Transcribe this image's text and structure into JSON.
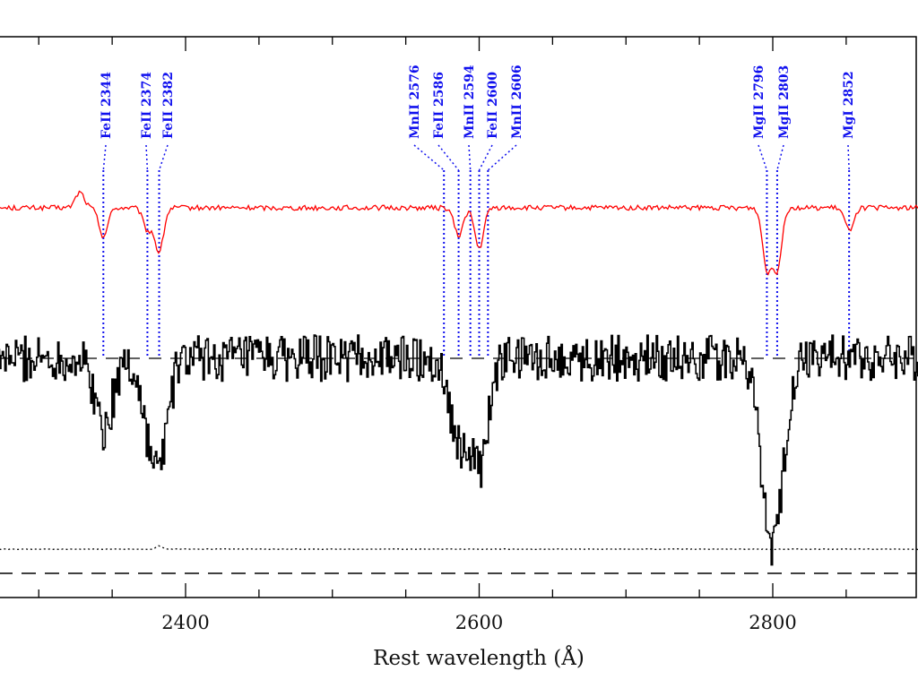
{
  "chart_data": {
    "type": "line",
    "title": "",
    "xlabel": "Rest wavelength (Å)",
    "ylabel": "",
    "xlim": [
      2240,
      2900
    ],
    "x_ticks": [
      {
        "value": 2400,
        "label": "2400"
      },
      {
        "value": 2600,
        "label": "2600"
      },
      {
        "value": 2800,
        "label": "2800"
      }
    ],
    "minor_tick_step": 50,
    "grid": false,
    "legend": "none",
    "line_markers": [
      {
        "label": "FeII 2344",
        "wavelength": 2344,
        "color": "#1010ee"
      },
      {
        "label": "FeII 2374",
        "wavelength": 2374,
        "color": "#1010ee"
      },
      {
        "label": "FeII 2382",
        "wavelength": 2382,
        "color": "#1010ee"
      },
      {
        "label": "MnII 2576",
        "wavelength": 2576,
        "color": "#1010ee"
      },
      {
        "label": "FeII 2586",
        "wavelength": 2586,
        "color": "#1010ee"
      },
      {
        "label": "MnII 2594",
        "wavelength": 2594,
        "color": "#1010ee"
      },
      {
        "label": "FeII 2600",
        "wavelength": 2600,
        "color": "#1010ee"
      },
      {
        "label": "MnII 2606",
        "wavelength": 2606,
        "color": "#1010ee"
      },
      {
        "label": "MgII 2796",
        "wavelength": 2796,
        "color": "#1010ee"
      },
      {
        "label": "MgII 2803",
        "wavelength": 2803,
        "color": "#1010ee"
      },
      {
        "label": "MgI 2852",
        "wavelength": 2852,
        "color": "#1010ee"
      }
    ],
    "series": [
      {
        "color": "#ff0000",
        "continuum": 1.0,
        "noise": 0.04,
        "feature_sigma": 3,
        "features": [
          {
            "x": 2328,
            "depth": -0.25
          },
          {
            "x": 2344,
            "depth": 0.45
          },
          {
            "x": 2374,
            "depth": 0.35
          },
          {
            "x": 2382,
            "depth": 0.7
          },
          {
            "x": 2586,
            "depth": 0.45
          },
          {
            "x": 2600,
            "depth": 0.65
          },
          {
            "x": 2796,
            "depth": 0.95
          },
          {
            "x": 2803,
            "depth": 0.95
          },
          {
            "x": 2852,
            "depth": 0.35
          }
        ]
      },
      {
        "color": "#000000",
        "continuum": 1.0,
        "noise": 0.2,
        "feature_sigma": 6,
        "features": [
          {
            "x": 2344,
            "depth": 0.6
          },
          {
            "x": 2374,
            "depth": 0.4
          },
          {
            "x": 2382,
            "depth": 0.75
          },
          {
            "x": 2586,
            "depth": 0.7
          },
          {
            "x": 2600,
            "depth": 0.9
          },
          {
            "x": 2796,
            "depth": 1.0
          },
          {
            "x": 2803,
            "depth": 0.95
          }
        ]
      },
      {
        "color": "#000000",
        "style": "dotted",
        "continuum": 1.0,
        "noise": 0.03,
        "feature_sigma": 2,
        "features": [
          {
            "x": 2382,
            "depth": -0.3
          }
        ]
      }
    ],
    "reference_lines": [
      {
        "series": 1,
        "style": "dashed"
      },
      {
        "series": 2,
        "style": "dashed"
      }
    ]
  }
}
